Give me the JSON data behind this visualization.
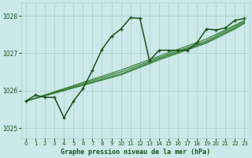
{
  "xlabel": "Graphe pression niveau de la mer (hPa)",
  "ylim": [
    1024.72,
    1028.35
  ],
  "xlim": [
    -0.5,
    23.5
  ],
  "yticks": [
    1025,
    1026,
    1027,
    1028
  ],
  "xticks": [
    0,
    1,
    2,
    3,
    4,
    5,
    6,
    7,
    8,
    9,
    10,
    11,
    12,
    13,
    14,
    15,
    16,
    17,
    18,
    19,
    20,
    21,
    22,
    23
  ],
  "bg_color": "#cce8e8",
  "grid_color": "#aacccc",
  "line_color": "#2d7a2d",
  "dark_line_color": "#1a521a",
  "zigzag_x": [
    0,
    1,
    2,
    3,
    4,
    5,
    6,
    7,
    8,
    9,
    10,
    11,
    12,
    13,
    14,
    15,
    16,
    17,
    18,
    19,
    20,
    21,
    22,
    23
  ],
  "zigzag_y": [
    1025.72,
    1025.88,
    1025.82,
    1025.82,
    1025.28,
    1025.72,
    1026.05,
    1026.55,
    1027.1,
    1027.45,
    1027.65,
    1027.95,
    1027.93,
    1026.8,
    1027.08,
    1027.08,
    1027.08,
    1027.08,
    1027.28,
    1027.65,
    1027.62,
    1027.68,
    1027.88,
    1027.93
  ],
  "trend_lines": [
    {
      "x": [
        0,
        10,
        14,
        19,
        22,
        23
      ],
      "y": [
        1025.72,
        1026.55,
        1026.92,
        1027.38,
        1027.75,
        1027.88
      ]
    },
    {
      "x": [
        0,
        10,
        14,
        19,
        22,
        23
      ],
      "y": [
        1025.72,
        1026.5,
        1026.88,
        1027.33,
        1027.72,
        1027.85
      ]
    },
    {
      "x": [
        0,
        10,
        14,
        19,
        22,
        23
      ],
      "y": [
        1025.72,
        1026.45,
        1026.85,
        1027.3,
        1027.68,
        1027.82
      ]
    },
    {
      "x": [
        0,
        10,
        14,
        19,
        22,
        23
      ],
      "y": [
        1025.72,
        1026.42,
        1026.82,
        1027.27,
        1027.65,
        1027.8
      ]
    }
  ]
}
